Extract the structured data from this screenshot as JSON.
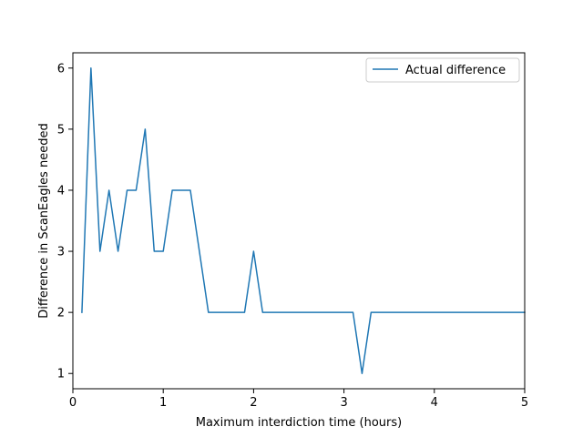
{
  "chart_data": {
    "type": "line",
    "title": "",
    "xlabel": "Maximum interdiction time (hours)",
    "ylabel": "Difference in ScanEagles needed",
    "xlim": [
      0,
      5
    ],
    "ylim": [
      0.75,
      6.25
    ],
    "xticks": [
      0,
      1,
      2,
      3,
      4,
      5
    ],
    "yticks": [
      1,
      2,
      3,
      4,
      5,
      6
    ],
    "grid": false,
    "legend_position": "top-right",
    "series": [
      {
        "name": "Actual difference",
        "color": "#1f77b4",
        "x": [
          0.1,
          0.2,
          0.3,
          0.4,
          0.5,
          0.6,
          0.7,
          0.8,
          0.9,
          1.0,
          1.1,
          1.2,
          1.3,
          1.4,
          1.5,
          1.6,
          1.7,
          1.8,
          1.9,
          2.0,
          2.1,
          2.2,
          2.3,
          2.4,
          2.5,
          2.6,
          2.7,
          2.8,
          2.9,
          3.0,
          3.1,
          3.2,
          3.3,
          3.4,
          3.5,
          3.6,
          3.7,
          3.8,
          3.9,
          4.0,
          4.1,
          4.2,
          4.3,
          4.4,
          4.5,
          4.6,
          4.7,
          4.8,
          4.9,
          5.0
        ],
        "y": [
          2,
          6,
          3,
          4,
          3,
          4,
          4,
          5,
          3,
          3,
          4,
          4,
          4,
          3,
          2,
          2,
          2,
          2,
          2,
          3,
          2,
          2,
          2,
          2,
          2,
          2,
          2,
          2,
          2,
          2,
          2,
          1,
          2,
          2,
          2,
          2,
          2,
          2,
          2,
          2,
          2,
          2,
          2,
          2,
          2,
          2,
          2,
          2,
          2,
          2
        ]
      }
    ]
  }
}
